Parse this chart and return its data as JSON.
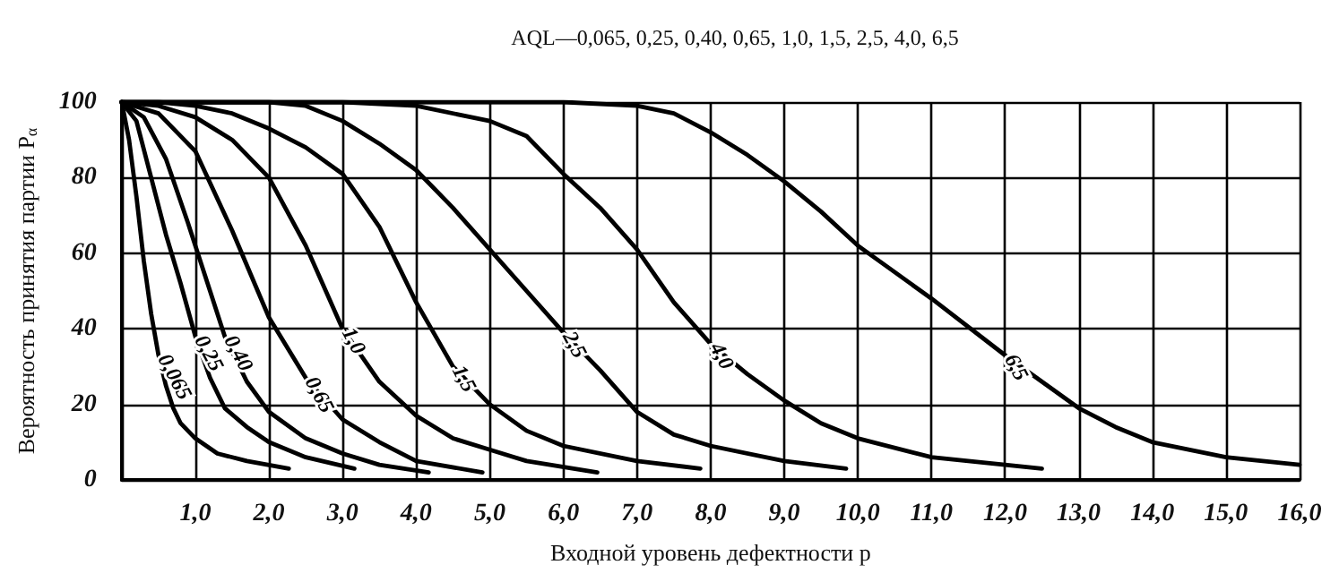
{
  "chart_data": {
    "type": "line",
    "title": "AQL—0,065, 0,25, 0,40, 0,65, 1,0, 1,5, 2,5, 4,0, 6,5",
    "xlabel": "Входной уровень дефектности р",
    "ylabel": "Вероятность принятия партии P$_{α}$",
    "xlim": [
      0,
      16
    ],
    "ylim": [
      0,
      100
    ],
    "xticks": [
      {
        "value": 1,
        "label": "1,0"
      },
      {
        "value": 2,
        "label": "2,0"
      },
      {
        "value": 3,
        "label": "3,0"
      },
      {
        "value": 4,
        "label": "4,0"
      },
      {
        "value": 5,
        "label": "5,0"
      },
      {
        "value": 6,
        "label": "6,0"
      },
      {
        "value": 7,
        "label": "7,0"
      },
      {
        "value": 8,
        "label": "8,0"
      },
      {
        "value": 9,
        "label": "9,0"
      },
      {
        "value": 10,
        "label": "10,0"
      },
      {
        "value": 11,
        "label": "11,0"
      },
      {
        "value": 12,
        "label": "12,0"
      },
      {
        "value": 13,
        "label": "13,0"
      },
      {
        "value": 14,
        "label": "14,0"
      },
      {
        "value": 15,
        "label": "15,0"
      },
      {
        "value": 16,
        "label": "16,0"
      }
    ],
    "yticks": [
      0,
      20,
      40,
      60,
      80,
      100
    ],
    "grid": true,
    "marker": "none",
    "line_style": "solid",
    "series": [
      {
        "name": "0,065",
        "color": "#000000",
        "x": [
          0,
          0.1,
          0.2,
          0.3,
          0.4,
          0.5,
          0.6,
          0.7,
          0.8,
          1.0,
          1.3,
          1.7,
          2.27
        ],
        "values": [
          100,
          90,
          75,
          58,
          44,
          33,
          25,
          19,
          15,
          11,
          7,
          5,
          3
        ]
      },
      {
        "name": "0,25",
        "color": "#000000",
        "x": [
          0,
          0.2,
          0.4,
          0.6,
          0.8,
          1.0,
          1.2,
          1.4,
          1.7,
          2.0,
          2.5,
          3.16
        ],
        "values": [
          100,
          95,
          80,
          65,
          52,
          38,
          27,
          19,
          14,
          10,
          6,
          3
        ]
      },
      {
        "name": "0,40",
        "color": "#000000",
        "x": [
          0,
          0.3,
          0.6,
          0.9,
          1.2,
          1.4,
          1.7,
          2.0,
          2.5,
          3.0,
          3.5,
          4.17
        ],
        "values": [
          100,
          96,
          85,
          68,
          50,
          38,
          26,
          18,
          11,
          7,
          4,
          2
        ]
      },
      {
        "name": "0,65",
        "color": "#000000",
        "x": [
          0,
          0.5,
          1.0,
          1.5,
          2.0,
          2.5,
          3.0,
          3.5,
          4.0,
          4.9
        ],
        "values": [
          100,
          97,
          87,
          66,
          43,
          27,
          16,
          10,
          5,
          2
        ]
      },
      {
        "name": "1,0",
        "color": "#000000",
        "x": [
          0,
          0.5,
          1.0,
          1.5,
          2.0,
          2.5,
          3.0,
          3.5,
          4.0,
          4.5,
          5.0,
          5.5,
          6.46
        ],
        "values": [
          100,
          99,
          96,
          90,
          80,
          62,
          40,
          26,
          17,
          11,
          8,
          5,
          2
        ]
      },
      {
        "name": "1,5",
        "color": "#000000",
        "x": [
          0,
          0.5,
          1.0,
          1.5,
          2.0,
          2.5,
          3.0,
          3.5,
          4.0,
          4.5,
          5.0,
          5.5,
          6.0,
          7.0,
          7.86
        ],
        "values": [
          100,
          100,
          99,
          97,
          93,
          88,
          81,
          67,
          47,
          30,
          20,
          13,
          9,
          5,
          3
        ]
      },
      {
        "name": "2,5",
        "color": "#000000",
        "x": [
          0,
          1,
          2,
          2.5,
          3,
          3.5,
          4,
          4.5,
          5,
          5.5,
          6,
          6.5,
          7,
          7.5,
          8,
          9,
          9.84
        ],
        "values": [
          100,
          100,
          100,
          99,
          95,
          89,
          82,
          72,
          61,
          50,
          39,
          29,
          18,
          12,
          9,
          5,
          3
        ]
      },
      {
        "name": "4,0",
        "color": "#000000",
        "x": [
          0,
          3,
          4,
          5,
          5.5,
          6,
          6.5,
          7,
          7.5,
          8,
          8.5,
          9,
          9.5,
          10,
          11,
          12,
          12.5
        ],
        "values": [
          100,
          100,
          99,
          95,
          91,
          81,
          72,
          61,
          47,
          36,
          28,
          21,
          15,
          11,
          6,
          4,
          3
        ]
      },
      {
        "name": "6,5",
        "color": "#000000",
        "x": [
          0,
          6,
          7,
          7.5,
          8,
          8.5,
          9,
          9.5,
          10,
          10.5,
          11,
          12,
          13,
          13.5,
          14,
          15,
          16
        ],
        "values": [
          100,
          100,
          99,
          97,
          92,
          86,
          79,
          71,
          62,
          55,
          48,
          33,
          19,
          14,
          10,
          6,
          4
        ]
      }
    ]
  }
}
